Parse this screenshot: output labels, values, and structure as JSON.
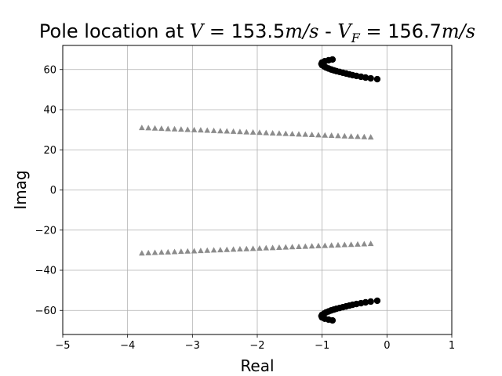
{
  "chart_data": {
    "type": "scatter",
    "title": {
      "prefix": "Pole location at ",
      "v_symbol": "V",
      "v_value": " = 153.5",
      "v_unit": "m/s",
      "separator": " - ",
      "vf_symbol": "V",
      "vf_sub": "F",
      "vf_value": " = 156.7",
      "vf_unit": "m/s"
    },
    "xlabel": "Real",
    "ylabel": "Imag",
    "xlim": [
      -5,
      1
    ],
    "ylim": [
      -72,
      72
    ],
    "xticks": [
      -5,
      -4,
      -3,
      -2,
      -1,
      0,
      1
    ],
    "xtick_labels": [
      "−5",
      "−4",
      "−3",
      "−2",
      "−1",
      "0",
      "1"
    ],
    "yticks": [
      -60,
      -40,
      -20,
      0,
      20,
      40,
      60
    ],
    "ytick_labels": [
      "−60",
      "−40",
      "−20",
      "0",
      "20",
      "40",
      "60"
    ],
    "grid": true,
    "colors": {
      "triangles": "#8c8c8c",
      "circles": "#000000",
      "grid": "#b0b0b0"
    },
    "series": [
      {
        "marker": "triangle",
        "color": "#8c8c8c",
        "branches": [
          {
            "x_start": -3.78,
            "x_end": -0.25,
            "y_start": 31.0,
            "y_end": 26.3,
            "count": 36
          },
          {
            "x_start": -3.78,
            "x_end": -0.25,
            "y_start": -31.5,
            "y_end": -26.8,
            "count": 36
          }
        ]
      },
      {
        "marker": "circle",
        "color": "#000000",
        "branches": [
          {
            "x": [
              -0.15,
              -0.25,
              -0.33,
              -0.4,
              -0.47,
              -0.53,
              -0.58,
              -0.63,
              -0.68,
              -0.73,
              -0.78,
              -0.82,
              -0.86,
              -0.9,
              -0.94,
              -0.97,
              -1.0,
              -1.01,
              -1.0,
              -0.96,
              -0.9,
              -0.84
            ],
            "y": [
              55.2,
              55.6,
              56.0,
              56.4,
              56.8,
              57.2,
              57.6,
              58.0,
              58.4,
              58.8,
              59.2,
              59.6,
              60.0,
              60.5,
              61.0,
              61.6,
              62.2,
              62.8,
              63.5,
              64.1,
              64.6,
              65.0
            ]
          },
          {
            "x": [
              -0.15,
              -0.25,
              -0.33,
              -0.4,
              -0.47,
              -0.53,
              -0.58,
              -0.63,
              -0.68,
              -0.73,
              -0.78,
              -0.82,
              -0.86,
              -0.9,
              -0.94,
              -0.97,
              -1.0,
              -1.01,
              -1.0,
              -0.96,
              -0.9,
              -0.84
            ],
            "y": [
              -55.2,
              -55.6,
              -56.0,
              -56.4,
              -56.8,
              -57.2,
              -57.6,
              -58.0,
              -58.4,
              -58.8,
              -59.2,
              -59.6,
              -60.0,
              -60.5,
              -61.0,
              -61.6,
              -62.2,
              -62.8,
              -63.5,
              -64.1,
              -64.6,
              -65.0
            ]
          }
        ]
      }
    ]
  }
}
